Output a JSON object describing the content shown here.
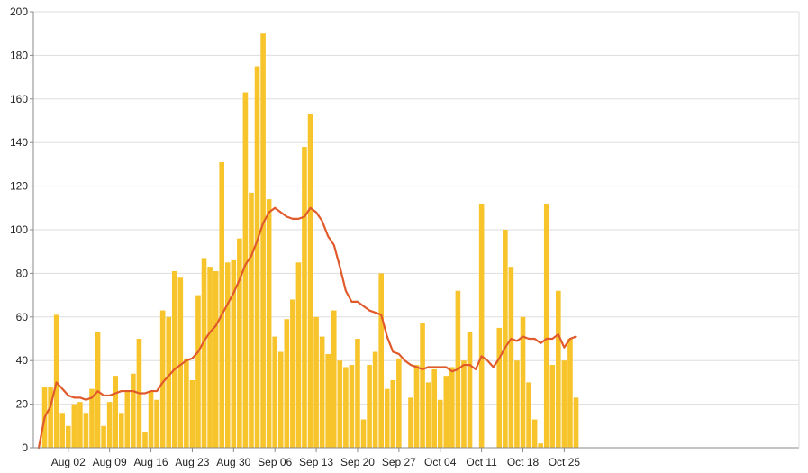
{
  "chart_data": {
    "type": "bar",
    "title": "",
    "xlabel": "",
    "ylabel": "",
    "ylim": [
      0,
      200
    ],
    "y_ticks": [
      0,
      20,
      40,
      60,
      80,
      100,
      120,
      140,
      160,
      180,
      200
    ],
    "x_tick_labels": [
      "Aug 02",
      "Aug 09",
      "Aug 16",
      "Aug 23",
      "Aug 30",
      "Sep 06",
      "Sep 13",
      "Sep 20",
      "Sep 27",
      "Oct 04",
      "Oct 11",
      "Oct 18",
      "Oct 25"
    ],
    "grid": true,
    "legend": "none",
    "first_date": "Jul 28",
    "series": [
      {
        "type": "bar",
        "color": "#f7c42b",
        "values": [
          0,
          28,
          28,
          61,
          16,
          10,
          20,
          21,
          16,
          27,
          53,
          10,
          21,
          33,
          16,
          26,
          34,
          50,
          7,
          26,
          22,
          63,
          60,
          81,
          78,
          41,
          31,
          70,
          87,
          83,
          81,
          131,
          85,
          86,
          96,
          163,
          117,
          175,
          190,
          114,
          51,
          44,
          59,
          68,
          85,
          138,
          153,
          60,
          51,
          43,
          63,
          40,
          37,
          38,
          50,
          13,
          38,
          44,
          80,
          27,
          31,
          41,
          0,
          23,
          38,
          57,
          30,
          36,
          22,
          33,
          37,
          72,
          40,
          53,
          0,
          112,
          0,
          0,
          55,
          100,
          83,
          40,
          60,
          30,
          13,
          2,
          112,
          38,
          72,
          40,
          50,
          23
        ]
      },
      {
        "type": "line",
        "color": "#e05a2b",
        "values": [
          0,
          14,
          19,
          30,
          27,
          24,
          23,
          23,
          22,
          23,
          26,
          24,
          24,
          25,
          26,
          26,
          26,
          25,
          25,
          26,
          26,
          30,
          33,
          36,
          38,
          40,
          41,
          44,
          49,
          53,
          56,
          61,
          66,
          71,
          77,
          84,
          88,
          95,
          103,
          108,
          110,
          108,
          106,
          105,
          105,
          106,
          110,
          108,
          104,
          97,
          93,
          83,
          72,
          67,
          67,
          65,
          63,
          62,
          61,
          51,
          44,
          43,
          40,
          38,
          37,
          36,
          37,
          37,
          37,
          37,
          35,
          36,
          38,
          38,
          36,
          42,
          40,
          37,
          41,
          46,
          50,
          49,
          51,
          50,
          50,
          48,
          50,
          50,
          52,
          46,
          50,
          51
        ]
      }
    ]
  }
}
